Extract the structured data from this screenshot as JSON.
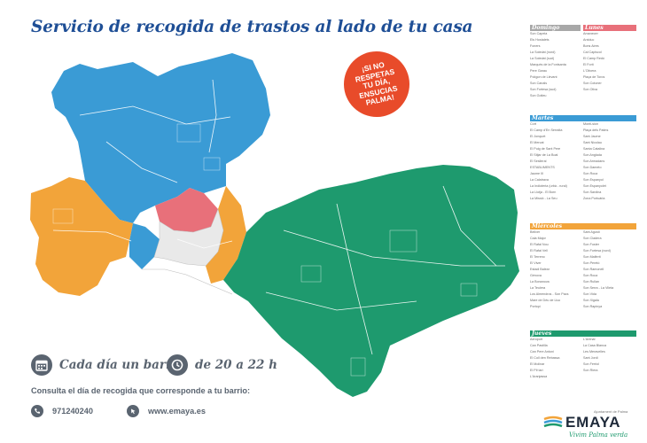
{
  "title": "Servicio de recogida de trastos al lado de tu casa",
  "badge": {
    "lines": [
      "¡SI NO",
      "RESPETAS",
      "TU DÍA,",
      "ENSUCIAS",
      "PALMA!"
    ],
    "color": "#e84b2a"
  },
  "slogan": {
    "left": "Cada día un barrio",
    "right": "de 20 a 22 h"
  },
  "consult_text": "Consulta el día de recogida que corresponde a tu barrio:",
  "contact": {
    "phone": "971240240",
    "web": "www.emaya.es"
  },
  "colors": {
    "domingo": "#a8a8a8",
    "lunes": "#e8707a",
    "martes": "#3a9bd5",
    "miercoles": "#f2a43a",
    "jueves": "#1e9a6e",
    "city_white": "#ffffff",
    "title": "#1f4f96",
    "text": "#5a6470"
  },
  "schedule": {
    "domingo": {
      "label": "Domingo",
      "left": [
        "Son Capeia",
        "Els Hostalets",
        "Foners",
        "La Soledat (nord)",
        "La Soledat (sud)",
        "Marquès de la Fontsanta",
        "Pere Garau",
        "Polígon de Llevant",
        "Son Canals",
        "Son Fortesa (sud)",
        "Son Gotleu"
      ],
      "right": []
    },
    "lunes": {
      "label": "Lunes",
      "left": [],
      "right": [
        "Amanecer",
        "Arxiduc",
        "Bons Aires",
        "Cal Capiscol",
        "El Camp Redó",
        "El Fortí",
        "L'Olivera",
        "Plaça de Toros",
        "Son Cotoner",
        "Son Oliva"
      ]
    },
    "martes": {
      "label": "Martes",
      "left": [
        "Cort",
        "El Camp d'En Serralta",
        "El Jonquet",
        "El Mercat",
        "El Puig de Sant Pere",
        "El Sitjar de La Boal",
        "El Seslleral",
        "ESTABLIMENTS",
        "Jaume III",
        "La Calatrava",
        "La Indioteria (urbà - rural)",
        "La Llotja - El Born",
        "La Missió - La Seu"
      ],
      "right": [
        "Monti-sion",
        "Plaça dels Patins",
        "Sant Jaume",
        "Sant Nicolau",
        "Santa Catalina",
        "Son Anglada",
        "Son Armadans",
        "Son Dameto",
        "Son Roca",
        "Son Espanyol",
        "Son Espanyolet",
        "Son Sardina",
        "Zona Portuària"
      ]
    },
    "miercoles": {
      "label": "Miércoles",
      "left": [
        "Bellver",
        "Cala Major",
        "El Rafal Nou",
        "El Rafal Vell",
        "El Terreno",
        "El Viver",
        "Estadi Balear",
        "Génova",
        "La Bonanova",
        "La Teulera",
        "Los Almendros - Son Pacs",
        "Mare de Déu de Lluc",
        "Portopí"
      ],
      "right": [
        "Sant Agustí",
        "Son Cladera",
        "Son Fuster",
        "Son Fortesa (nord)",
        "Son Malferit",
        "Son Peretó",
        "Son Ramonell",
        "Son Roca",
        "Son Rullan",
        "Son Serra - La Vileta",
        "Son Vida",
        "Son Xigala",
        "Son Rapinya"
      ]
    },
    "jueves": {
      "label": "Jueves",
      "left": [
        "Aeroport",
        "Can Pastilla",
        "Can Pere Antoni",
        "El Coll den Rebassa",
        "El Molinar",
        "El Pil·larí",
        "L'Aranjassa"
      ],
      "right": [
        "L'Arenal",
        "La Casa Blanca",
        "Les Meravelles",
        "Sant Jordi",
        "Son Ferriol",
        "Son Riera"
      ]
    }
  },
  "logo": {
    "ayuntamiento": "Ajuntament de Palma",
    "brand": "EMAYA",
    "tagline": "Vivim Palma verda"
  }
}
